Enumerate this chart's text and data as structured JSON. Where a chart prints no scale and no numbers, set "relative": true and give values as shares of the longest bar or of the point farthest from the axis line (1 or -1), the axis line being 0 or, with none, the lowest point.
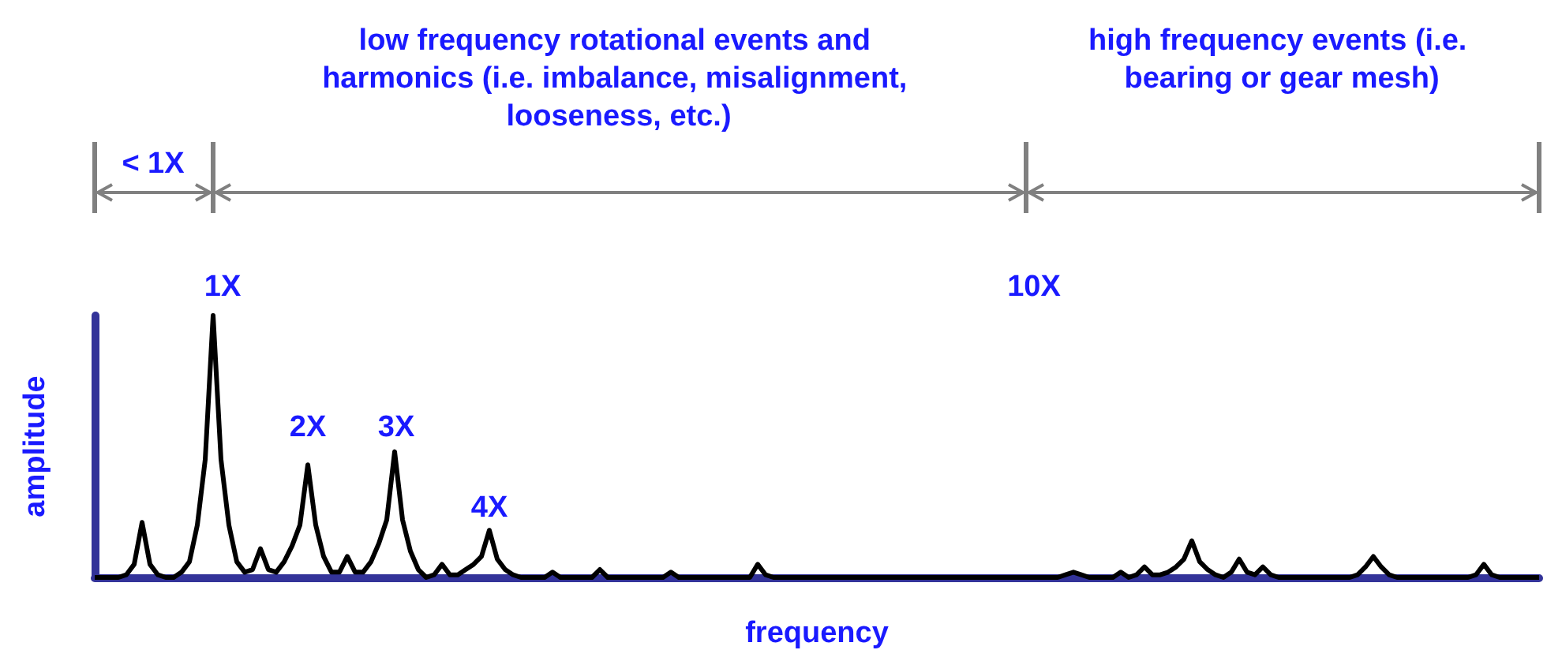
{
  "chart_data": {
    "type": "line",
    "relative": true,
    "xlabel": "frequency",
    "ylabel": "amplitude",
    "annotations": [
      "< 1X",
      "low frequency rotational events and harmonics (i.e. imbalance, misalignment, looseness, etc.)",
      "high frequency events (i.e. bearing or gear mesh)",
      "10X",
      "1X",
      "2X",
      "3X",
      "4X"
    ],
    "categories": [
      null,
      null,
      null,
      null,
      null,
      null,
      null,
      null,
      null,
      null,
      null,
      null,
      null,
      null,
      null,
      null,
      null,
      null,
      null,
      null,
      null,
      null,
      null,
      null,
      null,
      null,
      null,
      null,
      null,
      null,
      null,
      null,
      null,
      null,
      null,
      null,
      null,
      null,
      null,
      null,
      null,
      null,
      null,
      null,
      null,
      null,
      null,
      null,
      null,
      null,
      null,
      null,
      null,
      null,
      null,
      null,
      null,
      null,
      null,
      null,
      null,
      null,
      null,
      null,
      null,
      null,
      null,
      null,
      null,
      null,
      null,
      null,
      null,
      null,
      null,
      null,
      null,
      null,
      null,
      null,
      null,
      null,
      null,
      null,
      null,
      null,
      null,
      null,
      null,
      null,
      null,
      null,
      null,
      null,
      null,
      null,
      null,
      null,
      null,
      null,
      null,
      null,
      null,
      null,
      null,
      null,
      null,
      null,
      null,
      null,
      null,
      null,
      null,
      null,
      null,
      null,
      null,
      null,
      null,
      null,
      null,
      null,
      null,
      null,
      null,
      null,
      null,
      null,
      null,
      null,
      null,
      null,
      null,
      null,
      null,
      null,
      null,
      null,
      null,
      null,
      null,
      null,
      null,
      null,
      null,
      null,
      null,
      null,
      null,
      null,
      null,
      null,
      null,
      null,
      null,
      null,
      null,
      null,
      null,
      null,
      null,
      null,
      null,
      null,
      null,
      null,
      null,
      null,
      null,
      null,
      null,
      null,
      null,
      null,
      null,
      null,
      null,
      null,
      null,
      null,
      null,
      null,
      null,
      null
    ],
    "series": [
      {
        "color": "#000000",
        "values": [
          0,
          0,
          0,
          0,
          0.01,
          0.05,
          0.21,
          0.05,
          0.01,
          0,
          0,
          0.02,
          0.06,
          0.2,
          0.45,
          1,
          0.45,
          0.2,
          0.06,
          0.02,
          0.03,
          0.11,
          0.03,
          0.02,
          0.06,
          0.12,
          0.2,
          0.43,
          0.2,
          0.08,
          0.02,
          0.02,
          0.08,
          0.02,
          0.02,
          0.06,
          0.13,
          0.22,
          0.48,
          0.22,
          0.1,
          0.03,
          0,
          0.01,
          0.05,
          0.01,
          0.01,
          0.03,
          0.05,
          0.08,
          0.18,
          0.07,
          0.03,
          0.01,
          0,
          0,
          0,
          0,
          0.02,
          0,
          0,
          0,
          0,
          0,
          0.03,
          0,
          0,
          0,
          0,
          0,
          0,
          0,
          0,
          0.02,
          0,
          0,
          0,
          0,
          0,
          0,
          0,
          0,
          0,
          0,
          0.05,
          0.01,
          0,
          0,
          0,
          0,
          0,
          0,
          0,
          0,
          0,
          0,
          0,
          0,
          0,
          0,
          0,
          0,
          0,
          0,
          0,
          0,
          0,
          0,
          0,
          0,
          0,
          0,
          0,
          0,
          0,
          0,
          0,
          0,
          0,
          0,
          0,
          0,
          0,
          0.01,
          0.02,
          0.01,
          0,
          0,
          0,
          0,
          0.02,
          0,
          0.01,
          0.04,
          0.01,
          0.01,
          0.02,
          0.04,
          0.07,
          0.14,
          0.06,
          0.03,
          0.01,
          0,
          0.02,
          0.07,
          0.02,
          0.01,
          0.04,
          0.01,
          0,
          0,
          0,
          0,
          0,
          0,
          0,
          0,
          0,
          0,
          0.01,
          0.04,
          0.08,
          0.04,
          0.01,
          0,
          0,
          0,
          0,
          0,
          0,
          0,
          0,
          0,
          0,
          0.01,
          0.05,
          0.01,
          0,
          0,
          0,
          0,
          0,
          0
        ]
      }
    ]
  }
}
